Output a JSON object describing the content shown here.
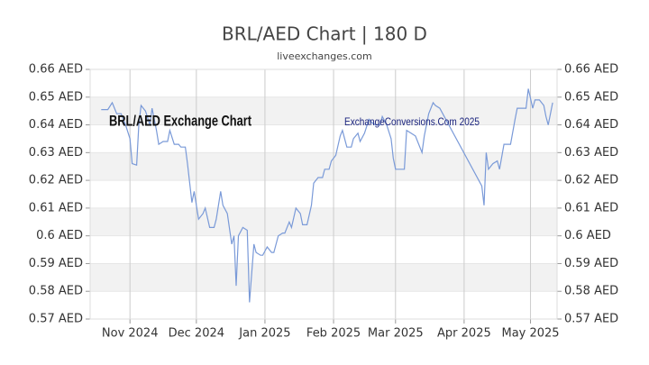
{
  "chart_data": {
    "type": "line",
    "title": "BRL/AED Chart | 180 D",
    "subtitle": "liveexchanges.com",
    "annotations": [
      "BRL/AED Exchange Chart",
      "ExchangeConversions.Com 2025"
    ],
    "x": [
      18,
      21,
      23,
      25,
      27,
      29,
      31,
      32,
      34,
      35,
      36,
      38,
      40,
      41,
      43,
      44,
      46,
      48,
      49,
      51,
      53,
      54,
      56,
      57,
      59,
      60,
      62,
      64,
      65,
      67,
      69,
      70,
      72,
      73,
      75,
      77,
      78,
      79,
      80,
      82,
      84,
      85,
      87,
      88,
      90,
      91,
      93,
      95,
      96,
      98,
      100,
      101,
      103,
      104,
      106,
      108,
      109,
      111,
      113,
      114,
      116,
      118,
      119,
      121,
      122,
      124,
      126,
      127,
      129,
      131,
      132,
      134,
      135,
      137,
      139,
      140,
      142,
      144,
      145,
      147,
      149,
      150,
      151,
      153,
      155,
      156,
      158,
      160,
      161,
      163,
      164,
      166,
      168,
      169,
      171,
      190,
      191,
      192,
      193,
      195,
      197,
      198,
      200,
      202,
      203,
      205,
      206,
      208,
      210,
      211,
      213,
      214,
      216,
      218,
      219,
      220,
      222
    ],
    "series": [
      {
        "name": "BRL/AED",
        "color": "#7a9ad8",
        "values": [
          0.6455,
          0.6455,
          0.648,
          0.644,
          0.644,
          0.64,
          0.635,
          0.626,
          0.6255,
          0.64,
          0.647,
          0.645,
          0.64,
          0.646,
          0.638,
          0.633,
          0.634,
          0.634,
          0.638,
          0.633,
          0.633,
          0.632,
          0.632,
          0.626,
          0.612,
          0.616,
          0.606,
          0.608,
          0.61,
          0.603,
          0.603,
          0.606,
          0.616,
          0.611,
          0.608,
          0.597,
          0.6,
          0.582,
          0.6,
          0.603,
          0.602,
          0.576,
          0.597,
          0.594,
          0.593,
          0.593,
          0.596,
          0.594,
          0.594,
          0.6,
          0.601,
          0.601,
          0.605,
          0.603,
          0.61,
          0.608,
          0.604,
          0.604,
          0.611,
          0.619,
          0.621,
          0.621,
          0.624,
          0.624,
          0.627,
          0.629,
          0.636,
          0.638,
          0.632,
          0.632,
          0.635,
          0.637,
          0.634,
          0.637,
          0.642,
          0.641,
          0.64,
          0.64,
          0.643,
          0.64,
          0.635,
          0.628,
          0.624,
          0.624,
          0.624,
          0.638,
          0.637,
          0.636,
          0.634,
          0.63,
          0.636,
          0.644,
          0.648,
          0.647,
          0.646,
          0.618,
          0.611,
          0.63,
          0.624,
          0.626,
          0.627,
          0.624,
          0.633,
          0.633,
          0.633,
          0.642,
          0.646,
          0.646,
          0.646,
          0.653,
          0.646,
          0.649,
          0.649,
          0.647,
          0.643,
          0.64,
          0.648
        ]
      }
    ],
    "xlim": [
      13,
      224
    ],
    "xticks": [
      {
        "value": 31,
        "label": "Nov 2024"
      },
      {
        "value": 61,
        "label": "Dec 2024"
      },
      {
        "value": 92,
        "label": "Jan 2025"
      },
      {
        "value": 123,
        "label": "Feb 2025"
      },
      {
        "value": 151,
        "label": "Mar 2025"
      },
      {
        "value": 182,
        "label": "Apr 2025"
      },
      {
        "value": 212,
        "label": "May 2025"
      }
    ],
    "ylim": [
      0.57,
      0.66
    ],
    "yticks": [
      {
        "value": 0.57,
        "label": "0.57 AED"
      },
      {
        "value": 0.58,
        "label": "0.58 AED"
      },
      {
        "value": 0.59,
        "label": "0.59 AED"
      },
      {
        "value": 0.6,
        "label": "0.6 AED"
      },
      {
        "value": 0.61,
        "label": "0.61 AED"
      },
      {
        "value": 0.62,
        "label": "0.62 AED"
      },
      {
        "value": 0.63,
        "label": "0.63 AED"
      },
      {
        "value": 0.64,
        "label": "0.64 AED"
      },
      {
        "value": 0.65,
        "label": "0.65 AED"
      },
      {
        "value": 0.66,
        "label": "0.66 AED"
      }
    ],
    "y2lim": [
      0.57,
      0.66
    ],
    "y2ticks": [
      {
        "value": 0.57,
        "label": "0.57 AED"
      },
      {
        "value": 0.58,
        "label": "0.58 AED"
      },
      {
        "value": 0.59,
        "label": "0.59 AED"
      },
      {
        "value": 0.6,
        "label": "0.6 AED"
      },
      {
        "value": 0.61,
        "label": "0.61 AED"
      },
      {
        "value": 0.62,
        "label": "0.62 AED"
      },
      {
        "value": 0.63,
        "label": "0.63 AED"
      },
      {
        "value": 0.64,
        "label": "0.64 AED"
      },
      {
        "value": 0.65,
        "label": "0.65 AED"
      },
      {
        "value": 0.66,
        "label": "0.66 AED"
      }
    ],
    "grid": true
  }
}
